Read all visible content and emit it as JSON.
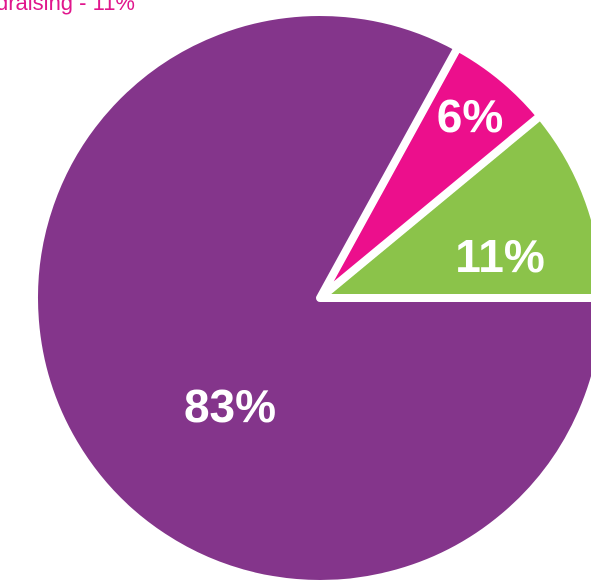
{
  "chart_data": {
    "type": "pie",
    "annotation": "draising - 11%",
    "values": [
      11,
      6,
      83
    ],
    "value_labels": [
      "11%",
      "6%",
      "83%"
    ],
    "colors": [
      "#8bc34a",
      "#ec0f8c",
      "#84358b"
    ]
  }
}
